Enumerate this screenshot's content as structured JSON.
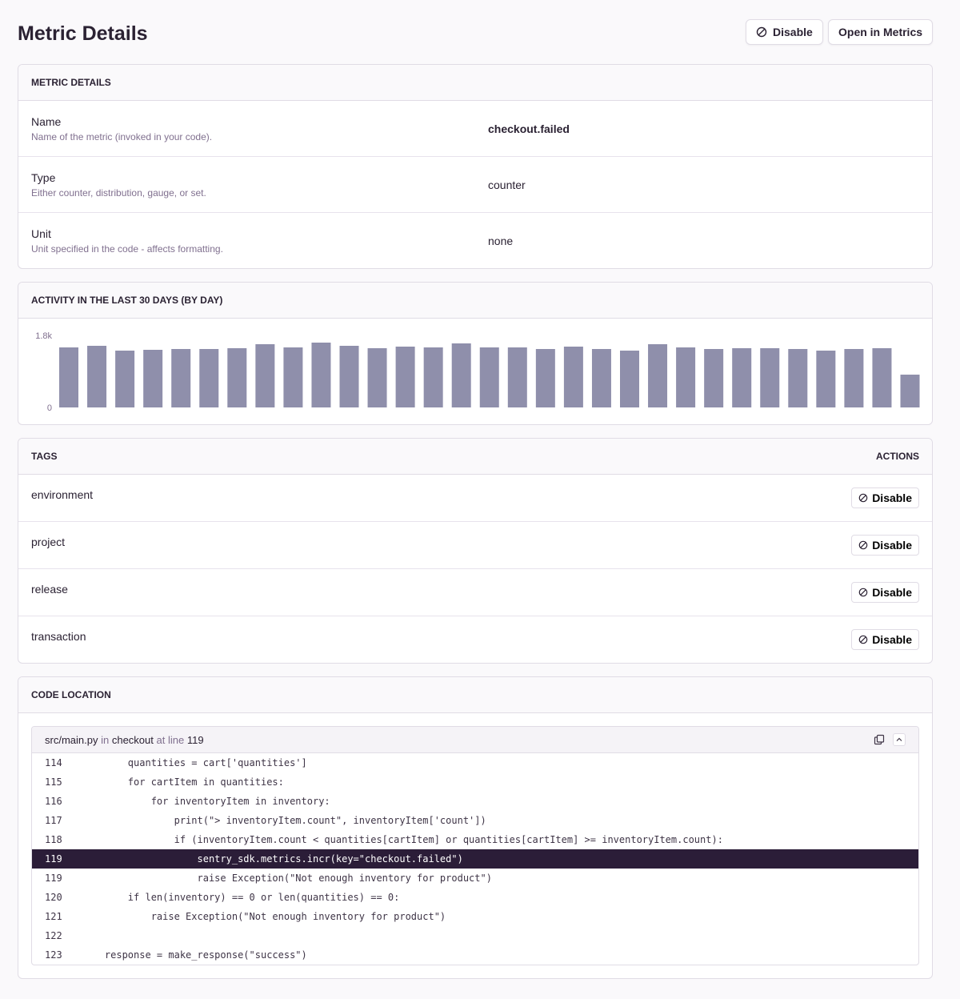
{
  "page": {
    "title": "Metric Details",
    "disable_label": "Disable",
    "open_label": "Open in Metrics"
  },
  "details": {
    "header": "Metric Details",
    "rows": [
      {
        "label": "Name",
        "desc": "Name of the metric (invoked in your code).",
        "value": "checkout.failed"
      },
      {
        "label": "Type",
        "desc": "Either counter, distribution, gauge, or set.",
        "value": "counter"
      },
      {
        "label": "Unit",
        "desc": "Unit specified in the code - affects formatting.",
        "value": "none"
      }
    ]
  },
  "activity": {
    "header": "Activity in the last 30 days (by day)"
  },
  "chart_data": {
    "type": "bar",
    "ylim": [
      0,
      1800
    ],
    "yticks": [
      "0",
      "1.8k"
    ],
    "color": "#8f8fab",
    "values": [
      1500,
      1540,
      1420,
      1440,
      1460,
      1460,
      1480,
      1580,
      1500,
      1620,
      1540,
      1480,
      1520,
      1500,
      1600,
      1500,
      1500,
      1460,
      1520,
      1460,
      1420,
      1580,
      1500,
      1460,
      1480,
      1480,
      1460,
      1420,
      1460,
      1480,
      820
    ]
  },
  "tags": {
    "header": "Tags",
    "actions": "Actions",
    "button": "Disable",
    "items": [
      "environment",
      "project",
      "release",
      "transaction"
    ]
  },
  "code": {
    "header": "Code Location",
    "file": "src/main.py",
    "in": "in",
    "func": "checkout",
    "at": "at line",
    "line": "119",
    "lines": [
      {
        "n": "114",
        "t": "        quantities = cart['quantities']"
      },
      {
        "n": "115",
        "t": "        for cartItem in quantities:"
      },
      {
        "n": "116",
        "t": "            for inventoryItem in inventory:"
      },
      {
        "n": "117",
        "t": "                print(\"> inventoryItem.count\", inventoryItem['count'])"
      },
      {
        "n": "118",
        "t": "                if (inventoryItem.count < quantities[cartItem] or quantities[cartItem] >= inventoryItem.count):"
      },
      {
        "n": "119",
        "t": "                    sentry_sdk.metrics.incr(key=\"checkout.failed\")",
        "hl": true
      },
      {
        "n": "119",
        "t": "                    raise Exception(\"Not enough inventory for product\")"
      },
      {
        "n": "120",
        "t": "        if len(inventory) == 0 or len(quantities) == 0:"
      },
      {
        "n": "121",
        "t": "            raise Exception(\"Not enough inventory for product\")"
      },
      {
        "n": "122",
        "t": ""
      },
      {
        "n": "123",
        "t": "    response = make_response(\"success\")"
      }
    ]
  }
}
